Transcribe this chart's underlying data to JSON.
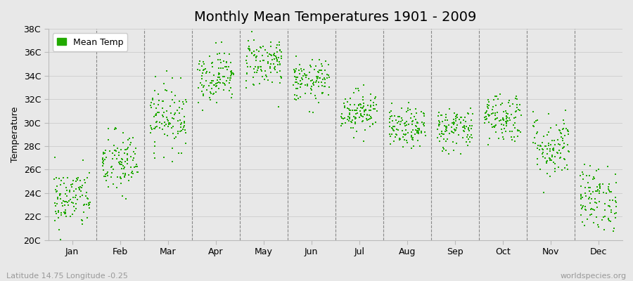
{
  "title": "Monthly Mean Temperatures 1901 - 2009",
  "ylabel": "Temperature",
  "subtitle_left": "Latitude 14.75 Longitude -0.25",
  "subtitle_right": "worldspecies.org",
  "ylim": [
    20,
    38
  ],
  "yticks": [
    20,
    22,
    24,
    26,
    28,
    30,
    32,
    34,
    36,
    38
  ],
  "ytick_labels": [
    "20C",
    "22C",
    "24C",
    "26C",
    "28C",
    "30C",
    "32C",
    "34C",
    "36C",
    "38C"
  ],
  "months": [
    "Jan",
    "Feb",
    "Mar",
    "Apr",
    "May",
    "Jun",
    "Jul",
    "Aug",
    "Sep",
    "Oct",
    "Nov",
    "Dec"
  ],
  "monthly_means": [
    23.5,
    26.5,
    30.5,
    34.0,
    35.2,
    33.5,
    31.0,
    29.5,
    29.5,
    30.5,
    28.0,
    23.5
  ],
  "monthly_stds": [
    1.3,
    1.4,
    1.4,
    1.1,
    1.1,
    0.9,
    0.9,
    0.85,
    0.95,
    1.1,
    1.4,
    1.4
  ],
  "n_years": 109,
  "dot_color": "#22aa00",
  "dot_size": 3,
  "bg_color": "#e8e8e8",
  "grid_color": "#d0d0d0",
  "dashed_line_color": "#888888",
  "legend_label": "Mean Temp",
  "title_fontsize": 14,
  "axis_label_fontsize": 9,
  "tick_fontsize": 9
}
